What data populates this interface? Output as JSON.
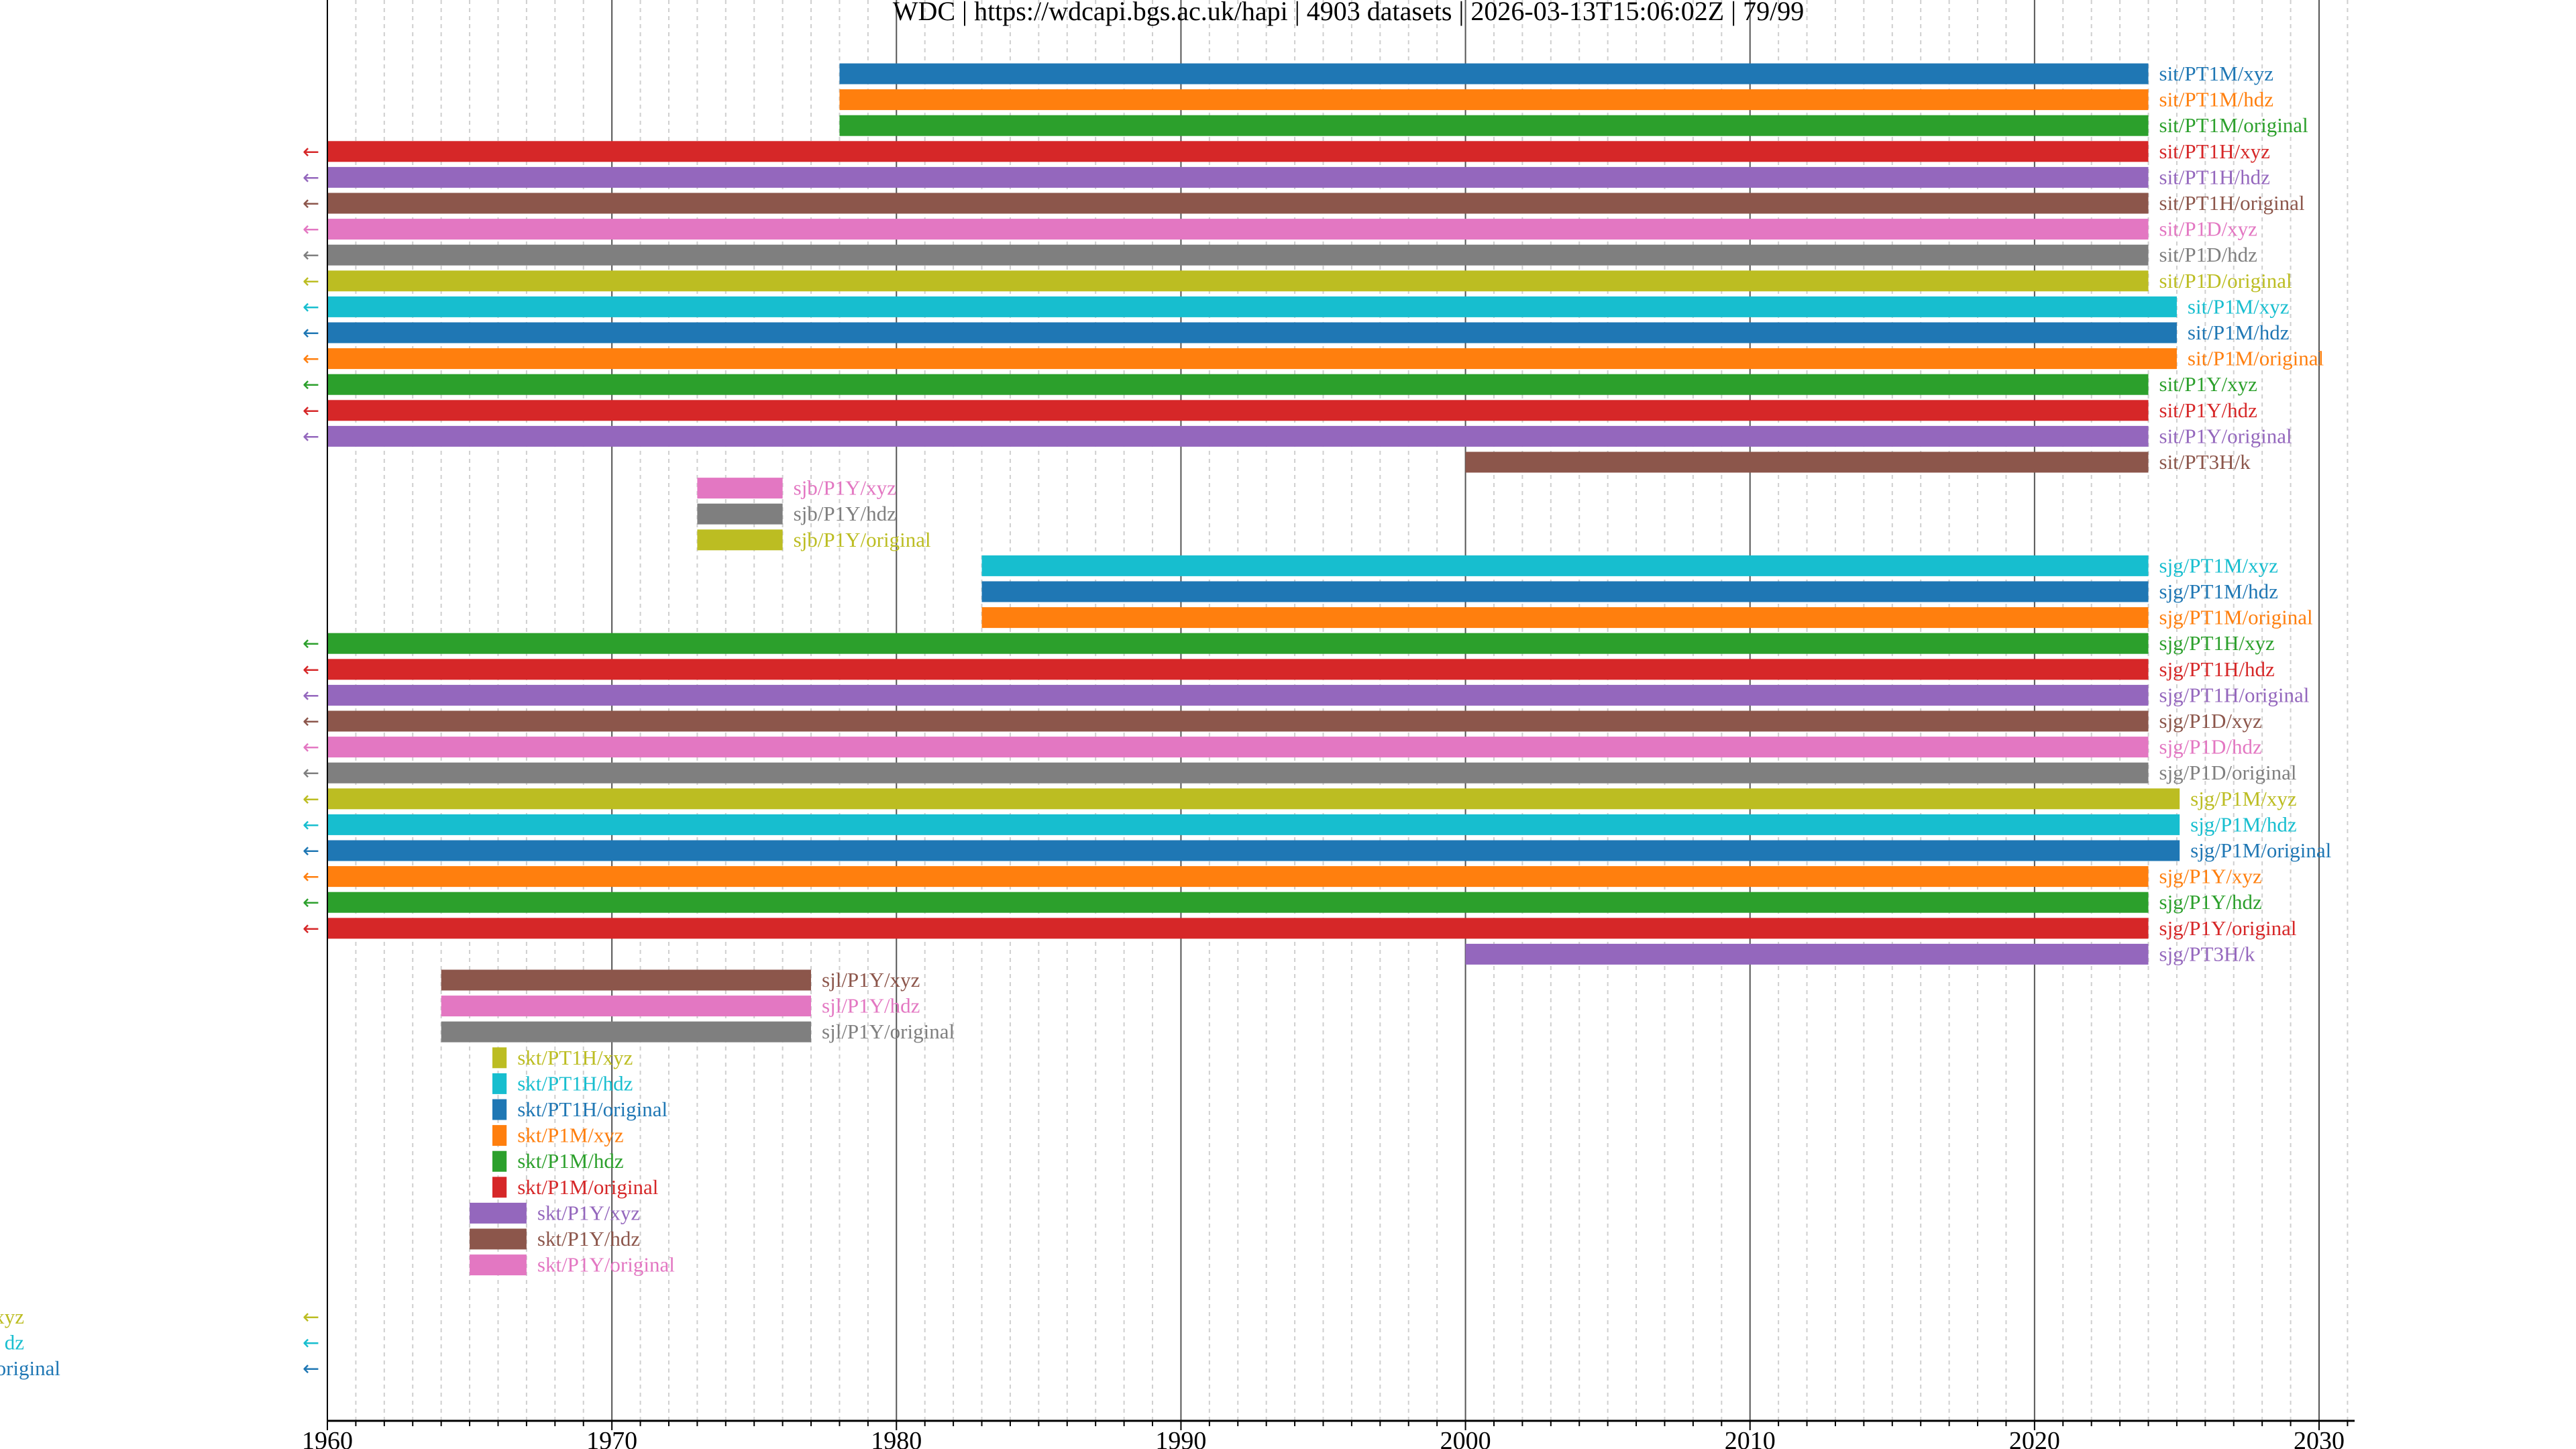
{
  "chart_data": {
    "type": "timeline",
    "title": "WDC | https://wdcapi.bgs.ac.uk/hapi | 4903 datasets | 2026-03-13T15:06:02Z | 79/99",
    "xlabel": "",
    "ylabel": "",
    "xlim": [
      1960,
      2031
    ],
    "xticks": [
      "1960",
      "1970",
      "1980",
      "1990",
      "2000",
      "2010",
      "2020",
      "2030"
    ],
    "major_grid_years": [
      1960,
      1970,
      1980,
      1990,
      2000,
      2010,
      2020,
      2030
    ],
    "minor_grid": true,
    "left_arrow_glyph": "←",
    "palette": [
      "#1f77b4",
      "#ff7f0e",
      "#2ca02c",
      "#d62728",
      "#9467bd",
      "#8c564b",
      "#e377c2",
      "#7f7f7f",
      "#bcbd22",
      "#17becf"
    ],
    "series": [
      {
        "name": "sit/PT1M/xyz",
        "start": 1978.0,
        "end": 2024.0,
        "truncated": false
      },
      {
        "name": "sit/PT1M/hdz",
        "start": 1978.0,
        "end": 2024.0,
        "truncated": false
      },
      {
        "name": "sit/PT1M/original",
        "start": 1978.0,
        "end": 2024.0,
        "truncated": false
      },
      {
        "name": "sit/PT1H/xyz",
        "start": 1960.0,
        "end": 2024.0,
        "truncated": true
      },
      {
        "name": "sit/PT1H/hdz",
        "start": 1960.0,
        "end": 2024.0,
        "truncated": true
      },
      {
        "name": "sit/PT1H/original",
        "start": 1960.0,
        "end": 2024.0,
        "truncated": true
      },
      {
        "name": "sit/P1D/xyz",
        "start": 1960.0,
        "end": 2024.0,
        "truncated": true
      },
      {
        "name": "sit/P1D/hdz",
        "start": 1960.0,
        "end": 2024.0,
        "truncated": true
      },
      {
        "name": "sit/P1D/original",
        "start": 1960.0,
        "end": 2024.0,
        "truncated": true
      },
      {
        "name": "sit/P1M/xyz",
        "start": 1960.0,
        "end": 2025.0,
        "truncated": true
      },
      {
        "name": "sit/P1M/hdz",
        "start": 1960.0,
        "end": 2025.0,
        "truncated": true
      },
      {
        "name": "sit/P1M/original",
        "start": 1960.0,
        "end": 2025.0,
        "truncated": true
      },
      {
        "name": "sit/P1Y/xyz",
        "start": 1960.0,
        "end": 2024.0,
        "truncated": true
      },
      {
        "name": "sit/P1Y/hdz",
        "start": 1960.0,
        "end": 2024.0,
        "truncated": true
      },
      {
        "name": "sit/P1Y/original",
        "start": 1960.0,
        "end": 2024.0,
        "truncated": true
      },
      {
        "name": "sit/PT3H/k",
        "start": 2000.0,
        "end": 2024.0,
        "truncated": false
      },
      {
        "name": "sjb/P1Y/xyz",
        "start": 1973.0,
        "end": 1976.0,
        "truncated": false
      },
      {
        "name": "sjb/P1Y/hdz",
        "start": 1973.0,
        "end": 1976.0,
        "truncated": false
      },
      {
        "name": "sjb/P1Y/original",
        "start": 1973.0,
        "end": 1976.0,
        "truncated": false
      },
      {
        "name": "sjg/PT1M/xyz",
        "start": 1983.0,
        "end": 2024.0,
        "truncated": false
      },
      {
        "name": "sjg/PT1M/hdz",
        "start": 1983.0,
        "end": 2024.0,
        "truncated": false
      },
      {
        "name": "sjg/PT1M/original",
        "start": 1983.0,
        "end": 2024.0,
        "truncated": false
      },
      {
        "name": "sjg/PT1H/xyz",
        "start": 1960.0,
        "end": 2024.0,
        "truncated": true
      },
      {
        "name": "sjg/PT1H/hdz",
        "start": 1960.0,
        "end": 2024.0,
        "truncated": true
      },
      {
        "name": "sjg/PT1H/original",
        "start": 1960.0,
        "end": 2024.0,
        "truncated": true
      },
      {
        "name": "sjg/P1D/xyz",
        "start": 1960.0,
        "end": 2024.0,
        "truncated": true
      },
      {
        "name": "sjg/P1D/hdz",
        "start": 1960.0,
        "end": 2024.0,
        "truncated": true
      },
      {
        "name": "sjg/P1D/original",
        "start": 1960.0,
        "end": 2024.0,
        "truncated": true
      },
      {
        "name": "sjg/P1M/xyz",
        "start": 1960.0,
        "end": 2025.1,
        "truncated": true
      },
      {
        "name": "sjg/P1M/hdz",
        "start": 1960.0,
        "end": 2025.1,
        "truncated": true
      },
      {
        "name": "sjg/P1M/original",
        "start": 1960.0,
        "end": 2025.1,
        "truncated": true
      },
      {
        "name": "sjg/P1Y/xyz",
        "start": 1960.0,
        "end": 2024.0,
        "truncated": true
      },
      {
        "name": "sjg/P1Y/hdz",
        "start": 1960.0,
        "end": 2024.0,
        "truncated": true
      },
      {
        "name": "sjg/P1Y/original",
        "start": 1960.0,
        "end": 2024.0,
        "truncated": true
      },
      {
        "name": "sjg/PT3H/k",
        "start": 2000.0,
        "end": 2024.0,
        "truncated": false
      },
      {
        "name": "sjl/P1Y/xyz",
        "start": 1964.0,
        "end": 1977.0,
        "truncated": false
      },
      {
        "name": "sjl/P1Y/hdz",
        "start": 1964.0,
        "end": 1977.0,
        "truncated": false
      },
      {
        "name": "sjl/P1Y/original",
        "start": 1964.0,
        "end": 1977.0,
        "truncated": false
      },
      {
        "name": "skt/PT1H/xyz",
        "start": 1965.8,
        "end": 1966.3,
        "truncated": false
      },
      {
        "name": "skt/PT1H/hdz",
        "start": 1965.8,
        "end": 1966.3,
        "truncated": false
      },
      {
        "name": "skt/PT1H/original",
        "start": 1965.8,
        "end": 1966.3,
        "truncated": false
      },
      {
        "name": "skt/P1M/xyz",
        "start": 1965.8,
        "end": 1966.3,
        "truncated": false
      },
      {
        "name": "skt/P1M/hdz",
        "start": 1965.8,
        "end": 1966.3,
        "truncated": false
      },
      {
        "name": "skt/P1M/original",
        "start": 1965.8,
        "end": 1966.3,
        "truncated": false
      },
      {
        "name": "skt/P1Y/xyz",
        "start": 1965.0,
        "end": 1967.0,
        "truncated": false
      },
      {
        "name": "skt/P1Y/hdz",
        "start": 1965.0,
        "end": 1967.0,
        "truncated": false
      },
      {
        "name": "skt/P1Y/original",
        "start": 1965.0,
        "end": 1967.0,
        "truncated": false
      },
      {
        "name": "",
        "start": null,
        "end": null,
        "truncated": false
      },
      {
        "name": "xyz",
        "start": null,
        "end": null,
        "truncated": true
      },
      {
        "name": "dz",
        "start": null,
        "end": null,
        "truncated": true
      },
      {
        "name": "original",
        "start": null,
        "end": null,
        "truncated": true
      }
    ]
  }
}
